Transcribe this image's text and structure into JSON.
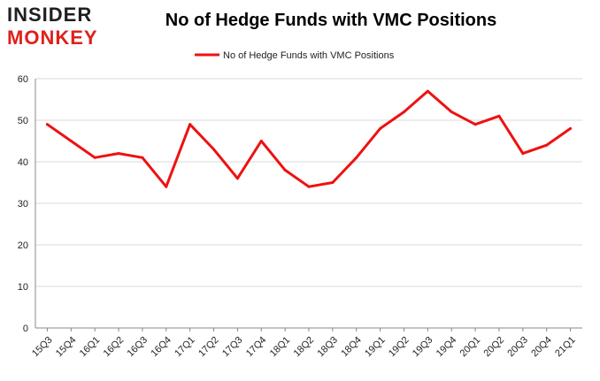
{
  "logo": {
    "line1": "INSIDER",
    "line2": "MONKEY"
  },
  "chart_data": {
    "type": "line",
    "title": "No of Hedge Funds with VMC Positions",
    "xlabel": "",
    "ylabel": "",
    "categories": [
      "15Q3",
      "15Q4",
      "16Q1",
      "16Q2",
      "16Q3",
      "16Q4",
      "17Q1",
      "17Q2",
      "17Q3",
      "17Q4",
      "18Q1",
      "18Q2",
      "18Q3",
      "18Q4",
      "19Q1",
      "19Q2",
      "19Q3",
      "19Q4",
      "20Q1",
      "20Q2",
      "20Q3",
      "20Q4",
      "21Q1"
    ],
    "series": [
      {
        "name": "No of Hedge Funds with VMC Positions",
        "values": [
          49,
          45,
          41,
          42,
          41,
          34,
          49,
          43,
          36,
          45,
          38,
          34,
          35,
          41,
          48,
          52,
          57,
          52,
          49,
          51,
          42,
          44,
          48
        ]
      }
    ],
    "ylim": [
      0,
      60
    ],
    "yticks": [
      0,
      10,
      20,
      30,
      40,
      50,
      60
    ],
    "grid": true,
    "legend": "top-center",
    "colors": {
      "line": "#ee1111",
      "grid": "#d9d9d9",
      "axis": "#888888"
    }
  }
}
